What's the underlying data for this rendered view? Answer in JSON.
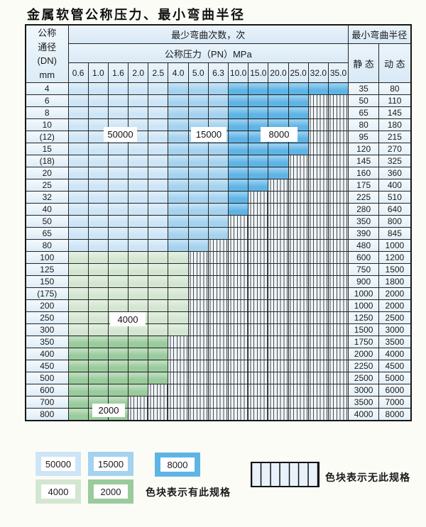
{
  "title": "金属软管公称压力、最小弯曲半径",
  "colors": {
    "c50000": "#cde5f6",
    "c15000": "#a4d2ef",
    "c8000": "#5fb4e6",
    "c4000": "#d3e6d1",
    "c2000": "#9acb9c",
    "hatchbg": "#eef5fb",
    "grid": "#262626"
  },
  "table": {
    "header": {
      "dn_lines": [
        "公称",
        "通径",
        "(DN)",
        "mm"
      ],
      "bend_count_title": "最少弯曲次数，次",
      "pressure_title": "公称压力（PN）MPa",
      "pressure_values": [
        "0.6",
        "1.0",
        "1.6",
        "2.0",
        "2.5",
        "4.0",
        "5.0",
        "6.3",
        "10.0",
        "15.0",
        "20.0",
        "25.0",
        "32.0",
        "35.0"
      ],
      "radius_title": "最小弯曲半径",
      "static_label": "静 态",
      "dynamic_label": "动 态"
    },
    "band_labels": [
      "50000",
      "15000",
      "8000",
      "4000",
      "2000"
    ],
    "blue_column_bands": [
      {
        "count": "50000",
        "cols": [
          "0.6",
          "1.0",
          "1.6",
          "2.0",
          "2.5"
        ]
      },
      {
        "count": "15000",
        "cols": [
          "4.0",
          "5.0",
          "6.3"
        ]
      },
      {
        "count": "8000",
        "cols": [
          "10.0",
          "15.0",
          "20.0",
          "25.0",
          "32.0",
          "35.0"
        ]
      }
    ],
    "rows": [
      {
        "dn": "4",
        "band": "blue",
        "colored": 14,
        "max_pn": "35.0",
        "static": "35",
        "dynamic": "80"
      },
      {
        "dn": "6",
        "band": "blue",
        "colored": 12,
        "max_pn": "25.0",
        "static": "50",
        "dynamic": "110"
      },
      {
        "dn": "8",
        "band": "blue",
        "colored": 12,
        "max_pn": "25.0",
        "static": "65",
        "dynamic": "145"
      },
      {
        "dn": "10",
        "band": "blue",
        "colored": 12,
        "max_pn": "25.0",
        "static": "80",
        "dynamic": "180"
      },
      {
        "dn": "(12)",
        "band": "blue",
        "colored": 12,
        "max_pn": "25.0",
        "static": "95",
        "dynamic": "215"
      },
      {
        "dn": "15",
        "band": "blue",
        "colored": 12,
        "max_pn": "25.0",
        "static": "120",
        "dynamic": "270"
      },
      {
        "dn": "(18)",
        "band": "blue",
        "colored": 11,
        "max_pn": "20.0",
        "static": "145",
        "dynamic": "325"
      },
      {
        "dn": "20",
        "band": "blue",
        "colored": 11,
        "max_pn": "20.0",
        "static": "160",
        "dynamic": "360"
      },
      {
        "dn": "25",
        "band": "blue",
        "colored": 10,
        "max_pn": "15.0",
        "static": "175",
        "dynamic": "400"
      },
      {
        "dn": "32",
        "band": "blue",
        "colored": 9,
        "max_pn": "10.0",
        "static": "225",
        "dynamic": "510"
      },
      {
        "dn": "40",
        "band": "blue",
        "colored": 9,
        "max_pn": "10.0",
        "static": "280",
        "dynamic": "640"
      },
      {
        "dn": "50",
        "band": "blue",
        "colored": 8,
        "max_pn": "6.3",
        "static": "350",
        "dynamic": "800"
      },
      {
        "dn": "65",
        "band": "blue",
        "colored": 8,
        "max_pn": "6.3",
        "static": "390",
        "dynamic": "845"
      },
      {
        "dn": "80",
        "band": "blue",
        "colored": 7,
        "max_pn": "5.0",
        "static": "480",
        "dynamic": "1000"
      },
      {
        "dn": "100",
        "band": "g4000",
        "colored": 6,
        "max_pn": "4.0",
        "static": "600",
        "dynamic": "1200"
      },
      {
        "dn": "125",
        "band": "g4000",
        "colored": 6,
        "max_pn": "4.0",
        "static": "750",
        "dynamic": "1500"
      },
      {
        "dn": "150",
        "band": "g4000",
        "colored": 6,
        "max_pn": "4.0",
        "static": "900",
        "dynamic": "1800"
      },
      {
        "dn": "(175)",
        "band": "g4000",
        "colored": 6,
        "max_pn": "4.0",
        "static": "1000",
        "dynamic": "2000"
      },
      {
        "dn": "200",
        "band": "g4000",
        "colored": 6,
        "max_pn": "4.0",
        "static": "1000",
        "dynamic": "2000"
      },
      {
        "dn": "250",
        "band": "g4000",
        "colored": 6,
        "max_pn": "4.0",
        "static": "1250",
        "dynamic": "2500"
      },
      {
        "dn": "300",
        "band": "g4000",
        "colored": 6,
        "max_pn": "4.0",
        "static": "1500",
        "dynamic": "3000"
      },
      {
        "dn": "350",
        "band": "g2000",
        "colored": 5,
        "max_pn": "2.5",
        "static": "1750",
        "dynamic": "3500"
      },
      {
        "dn": "400",
        "band": "g2000",
        "colored": 5,
        "max_pn": "2.5",
        "static": "2000",
        "dynamic": "4000"
      },
      {
        "dn": "450",
        "band": "g2000",
        "colored": 5,
        "max_pn": "2.5",
        "static": "2250",
        "dynamic": "4500"
      },
      {
        "dn": "500",
        "band": "g2000",
        "colored": 5,
        "max_pn": "2.5",
        "static": "2500",
        "dynamic": "5000"
      },
      {
        "dn": "600",
        "band": "g2000",
        "colored": 4,
        "max_pn": "2.0",
        "static": "3000",
        "dynamic": "6000"
      },
      {
        "dn": "700",
        "band": "g2000",
        "colored": 3,
        "max_pn": "1.6",
        "static": "3500",
        "dynamic": "7000"
      },
      {
        "dn": "800",
        "band": "g2000",
        "colored": 3,
        "max_pn": "1.6",
        "static": "4000",
        "dynamic": "8000"
      }
    ]
  },
  "legend": {
    "items": [
      {
        "label": "50000",
        "color": "#cde5f6"
      },
      {
        "label": "15000",
        "color": "#a4d2ef"
      },
      {
        "label": "8000",
        "color": "#5fb4e6"
      },
      {
        "label": "4000",
        "color": "#d3e6d1"
      },
      {
        "label": "2000",
        "color": "#9acb9c"
      }
    ],
    "has_spec_text": "色块表示有此规格",
    "no_spec_text": "色块表示无此规格"
  }
}
